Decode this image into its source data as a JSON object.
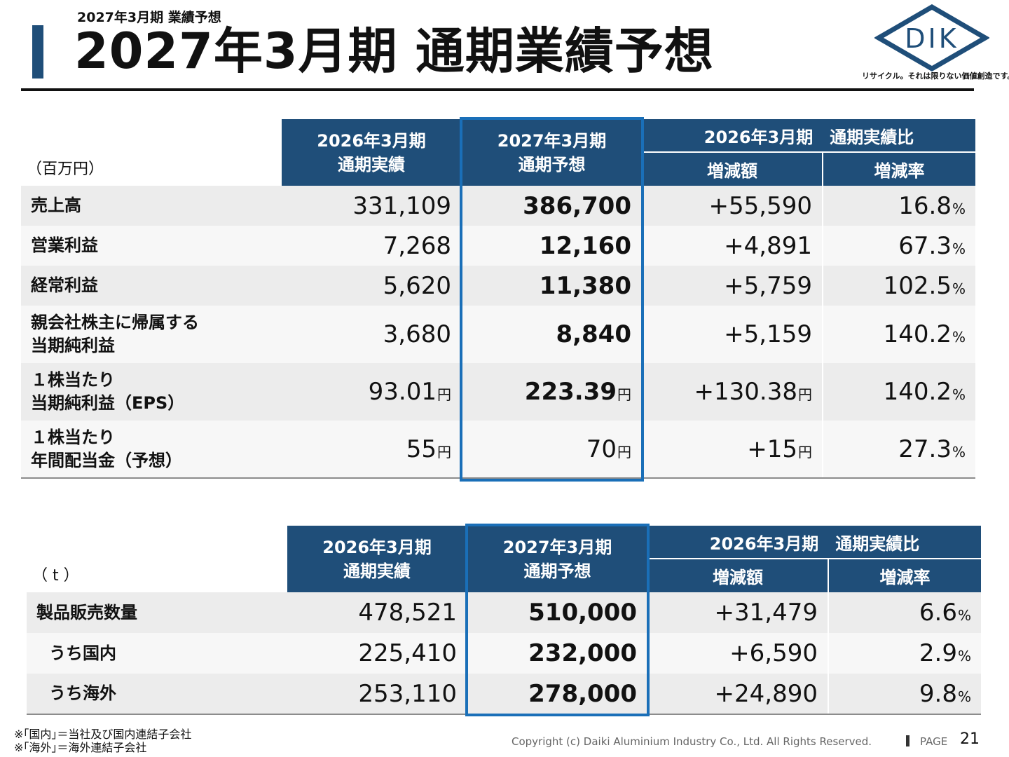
{
  "header": {
    "subtitle": "2027年3月期 業績予想",
    "title": "2027年3月期 通期業績予想",
    "logo_text": "DIK",
    "tagline": "リサイクル。それは限りない価値創造です。"
  },
  "table1": {
    "unit": "（百万円）",
    "col_actual": [
      "2026年3月期",
      "通期実績"
    ],
    "col_forecast": [
      "2027年3月期",
      "通期予想"
    ],
    "col_compare": "2026年3月期　通期実績比",
    "col_diff": "増減額",
    "col_rate": "増減率",
    "rows": [
      {
        "label": [
          "売上高"
        ],
        "actual": "331,109",
        "forecast": "386,700",
        "diff": "+55,590",
        "rate": "16.8"
      },
      {
        "label": [
          "営業利益"
        ],
        "actual": "7,268",
        "forecast": "12,160",
        "diff": "+4,891",
        "rate": "67.3"
      },
      {
        "label": [
          "経常利益"
        ],
        "actual": "5,620",
        "forecast": "11,380",
        "diff": "+5,759",
        "rate": "102.5"
      },
      {
        "label": [
          "親会社株主に帰属する",
          "当期純利益"
        ],
        "actual": "3,680",
        "forecast": "8,840",
        "diff": "+5,159",
        "rate": "140.2"
      },
      {
        "label": [
          "１株当たり",
          "当期純利益（EPS）"
        ],
        "actual": "93.01",
        "forecast": "223.39",
        "diff": "+130.38",
        "rate": "140.2"
      },
      {
        "label": [
          "１株当たり",
          "年間配当金（予想）"
        ],
        "actual": "55",
        "forecast": "70",
        "diff": "+15",
        "rate": "27.3"
      }
    ]
  },
  "table2": {
    "unit": "（ t ）",
    "col_actual": [
      "2026年3月期",
      "通期実績"
    ],
    "col_forecast": [
      "2027年3月期",
      "通期予想"
    ],
    "col_compare": "2026年3月期　通期実績比",
    "col_diff": "増減額",
    "col_rate": "増減率",
    "rows": [
      {
        "label": "製品販売数量",
        "actual": "478,521",
        "forecast": "510,000",
        "diff": "+31,479",
        "rate": "6.6"
      },
      {
        "label": "うち国内",
        "actual": "225,410",
        "forecast": "232,000",
        "diff": "+6,590",
        "rate": "2.9"
      },
      {
        "label": "うち海外",
        "actual": "253,110",
        "forecast": "278,000",
        "diff": "+24,890",
        "rate": "9.8"
      }
    ]
  },
  "units": {
    "yen": "円",
    "percent": "%"
  },
  "footer": {
    "note1": "※｢国内｣＝当社及び国内連結子会社",
    "note2": "※｢海外｣＝海外連結子会社",
    "copyright": "Copyright (c) Daiki Aluminium Industry Co., Ltd. All Rights Reserved.",
    "page_label": "PAGE",
    "page_number": "21"
  },
  "colors": {
    "header_bg": "#1f4e79",
    "highlight": "#1a6fb8"
  }
}
